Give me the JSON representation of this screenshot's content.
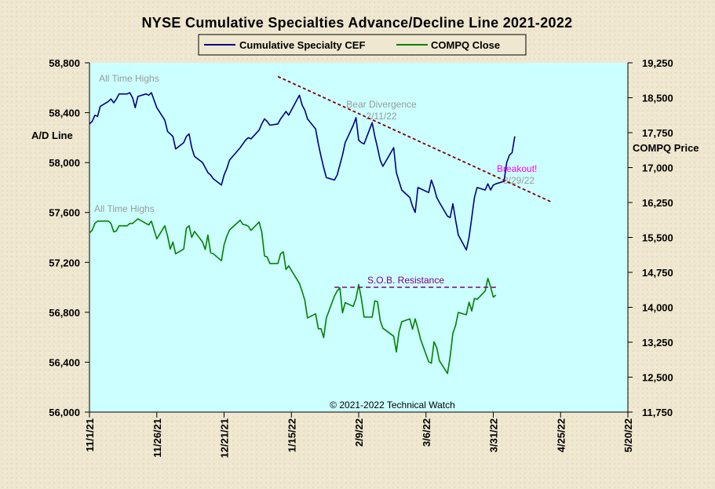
{
  "chart_data": {
    "type": "line",
    "title": "NYSE Cumulative  Specialties  Advance/Decline  Line  2021-2022",
    "left_axis": {
      "label": "A/D Line",
      "ylim": [
        56000,
        58800
      ],
      "ticks": [
        56000,
        56400,
        56800,
        57200,
        57600,
        58000,
        58400,
        58800
      ],
      "tick_labels": [
        "56,000",
        "56,400",
        "56,800",
        "57,200",
        "57,600",
        "58,000",
        "58,400",
        "58,800"
      ]
    },
    "right_axis": {
      "label": "COMPQ Price",
      "ylim": [
        11750,
        19250
      ],
      "ticks": [
        11750,
        12500,
        13250,
        14000,
        14750,
        15500,
        16250,
        17000,
        17750,
        18500,
        19250
      ],
      "tick_labels": [
        "11,750",
        "12,500",
        "13,250",
        "14,000",
        "14,750",
        "15,500",
        "16,250",
        "17,000",
        "17,750",
        "18,500",
        "19,250"
      ]
    },
    "x_axis": {
      "start": "2021-11-01",
      "end": "2022-05-20",
      "tick_dates": [
        "2021-11-01",
        "2021-11-26",
        "2021-12-21",
        "2022-01-15",
        "2022-02-09",
        "2022-03-06",
        "2022-03-31",
        "2022-04-25",
        "2022-05-20"
      ],
      "tick_labels": [
        "11/1/21",
        "11/26/21",
        "12/21/21",
        "1/15/22",
        "2/9/22",
        "3/6/22",
        "3/31/22",
        "4/25/22",
        "5/20/22"
      ]
    },
    "legend": {
      "placement": "top-center"
    },
    "colors": {
      "plot_bg": "#ccffff",
      "cef": "#000080",
      "compq": "#008000",
      "trend": "#800000",
      "resistance": "#800080",
      "breakout": "#ff00ff",
      "annotation": "#9a9a9a"
    },
    "series": [
      {
        "name": "Cumulative Specialty CEF",
        "axis": "left",
        "points": [
          [
            "2021-11-01",
            58310
          ],
          [
            "2021-11-02",
            58330
          ],
          [
            "2021-11-03",
            58380
          ],
          [
            "2021-11-04",
            58370
          ],
          [
            "2021-11-05",
            58450
          ],
          [
            "2021-11-08",
            58490
          ],
          [
            "2021-11-09",
            58510
          ],
          [
            "2021-11-10",
            58480
          ],
          [
            "2021-11-11",
            58510
          ],
          [
            "2021-11-12",
            58550
          ],
          [
            "2021-11-15",
            58550
          ],
          [
            "2021-11-16",
            58560
          ],
          [
            "2021-11-17",
            58520
          ],
          [
            "2021-11-18",
            58440
          ],
          [
            "2021-11-19",
            58530
          ],
          [
            "2021-11-22",
            58550
          ],
          [
            "2021-11-23",
            58540
          ],
          [
            "2021-11-24",
            58560
          ],
          [
            "2021-11-26",
            58440
          ],
          [
            "2021-11-29",
            58340
          ],
          [
            "2021-11-30",
            58250
          ],
          [
            "2021-12-01",
            58230
          ],
          [
            "2021-12-02",
            58210
          ],
          [
            "2021-12-03",
            58110
          ],
          [
            "2021-12-06",
            58160
          ],
          [
            "2021-12-07",
            58210
          ],
          [
            "2021-12-08",
            58230
          ],
          [
            "2021-12-09",
            58120
          ],
          [
            "2021-12-10",
            58050
          ],
          [
            "2021-12-13",
            58000
          ],
          [
            "2021-12-14",
            57960
          ],
          [
            "2021-12-15",
            57920
          ],
          [
            "2021-12-16",
            57900
          ],
          [
            "2021-12-17",
            57870
          ],
          [
            "2021-12-20",
            57820
          ],
          [
            "2021-12-21",
            57900
          ],
          [
            "2021-12-22",
            57950
          ],
          [
            "2021-12-23",
            58020
          ],
          [
            "2021-12-27",
            58120
          ],
          [
            "2021-12-28",
            58150
          ],
          [
            "2021-12-29",
            58180
          ],
          [
            "2021-12-30",
            58200
          ],
          [
            "2021-12-31",
            58190
          ],
          [
            "2022-01-03",
            58260
          ],
          [
            "2022-01-04",
            58310
          ],
          [
            "2022-01-05",
            58350
          ],
          [
            "2022-01-06",
            58330
          ],
          [
            "2022-01-07",
            58300
          ],
          [
            "2022-01-10",
            58310
          ],
          [
            "2022-01-11",
            58350
          ],
          [
            "2022-01-12",
            58380
          ],
          [
            "2022-01-13",
            58410
          ],
          [
            "2022-01-14",
            58380
          ],
          [
            "2022-01-18",
            58540
          ],
          [
            "2022-01-19",
            58460
          ],
          [
            "2022-01-20",
            58420
          ],
          [
            "2022-01-21",
            58350
          ],
          [
            "2022-01-24",
            58270
          ],
          [
            "2022-01-25",
            58150
          ],
          [
            "2022-01-26",
            58050
          ],
          [
            "2022-01-27",
            57960
          ],
          [
            "2022-01-28",
            57880
          ],
          [
            "2022-01-31",
            57860
          ],
          [
            "2022-02-01",
            57900
          ],
          [
            "2022-02-02",
            57980
          ],
          [
            "2022-02-03",
            58060
          ],
          [
            "2022-02-04",
            58160
          ],
          [
            "2022-02-07",
            58300
          ],
          [
            "2022-02-08",
            58360
          ],
          [
            "2022-02-09",
            58180
          ],
          [
            "2022-02-10",
            58160
          ],
          [
            "2022-02-11",
            58150
          ],
          [
            "2022-02-14",
            58320
          ],
          [
            "2022-02-15",
            58210
          ],
          [
            "2022-02-16",
            58120
          ],
          [
            "2022-02-17",
            58020
          ],
          [
            "2022-02-18",
            57970
          ],
          [
            "2022-02-22",
            58120
          ],
          [
            "2022-02-23",
            57920
          ],
          [
            "2022-02-24",
            57850
          ],
          [
            "2022-02-25",
            57780
          ],
          [
            "2022-02-28",
            57720
          ],
          [
            "2022-03-01",
            57650
          ],
          [
            "2022-03-02",
            57600
          ],
          [
            "2022-03-03",
            57800
          ],
          [
            "2022-03-04",
            57790
          ],
          [
            "2022-03-07",
            57760
          ],
          [
            "2022-03-08",
            57860
          ],
          [
            "2022-03-09",
            57800
          ],
          [
            "2022-03-10",
            57720
          ],
          [
            "2022-03-11",
            57680
          ],
          [
            "2022-03-14",
            57570
          ],
          [
            "2022-03-15",
            57560
          ],
          [
            "2022-03-16",
            57670
          ],
          [
            "2022-03-17",
            57540
          ],
          [
            "2022-03-18",
            57420
          ],
          [
            "2022-03-21",
            57300
          ],
          [
            "2022-03-22",
            57400
          ],
          [
            "2022-03-23",
            57560
          ],
          [
            "2022-03-24",
            57720
          ],
          [
            "2022-03-25",
            57800
          ],
          [
            "2022-03-28",
            57780
          ],
          [
            "2022-03-29",
            57830
          ],
          [
            "2022-03-30",
            57780
          ],
          [
            "2022-03-31",
            57820
          ],
          [
            "2022-04-01",
            57830
          ],
          [
            "2022-04-04",
            57850
          ],
          [
            "2022-04-05",
            58000
          ],
          [
            "2022-04-06",
            58060
          ],
          [
            "2022-04-07",
            58080
          ],
          [
            "2022-04-08",
            58210
          ]
        ]
      },
      {
        "name": "COMPQ Close",
        "axis": "right",
        "points": [
          [
            "2021-11-01",
            15600
          ],
          [
            "2021-11-02",
            15650
          ],
          [
            "2021-11-03",
            15800
          ],
          [
            "2021-11-04",
            15850
          ],
          [
            "2021-11-05",
            15850
          ],
          [
            "2021-11-08",
            15850
          ],
          [
            "2021-11-09",
            15800
          ],
          [
            "2021-11-10",
            15620
          ],
          [
            "2021-11-11",
            15640
          ],
          [
            "2021-11-12",
            15750
          ],
          [
            "2021-11-15",
            15750
          ],
          [
            "2021-11-16",
            15800
          ],
          [
            "2021-11-17",
            15800
          ],
          [
            "2021-11-18",
            15850
          ],
          [
            "2021-11-19",
            15900
          ],
          [
            "2021-11-22",
            15800
          ],
          [
            "2021-11-23",
            15770
          ],
          [
            "2021-11-24",
            15850
          ],
          [
            "2021-11-26",
            15470
          ],
          [
            "2021-11-29",
            15750
          ],
          [
            "2021-11-30",
            15530
          ],
          [
            "2021-12-01",
            15250
          ],
          [
            "2021-12-02",
            15400
          ],
          [
            "2021-12-03",
            15150
          ],
          [
            "2021-12-06",
            15250
          ],
          [
            "2021-12-07",
            15700
          ],
          [
            "2021-12-08",
            15750
          ],
          [
            "2021-12-09",
            15500
          ],
          [
            "2021-12-10",
            15630
          ],
          [
            "2021-12-13",
            15400
          ],
          [
            "2021-12-14",
            15240
          ],
          [
            "2021-12-15",
            15550
          ],
          [
            "2021-12-16",
            15170
          ],
          [
            "2021-12-17",
            15150
          ],
          [
            "2021-12-20",
            15000
          ],
          [
            "2021-12-21",
            15340
          ],
          [
            "2021-12-22",
            15520
          ],
          [
            "2021-12-23",
            15660
          ],
          [
            "2021-12-27",
            15870
          ],
          [
            "2021-12-28",
            15780
          ],
          [
            "2021-12-29",
            15770
          ],
          [
            "2021-12-30",
            15740
          ],
          [
            "2021-12-31",
            15650
          ],
          [
            "2022-01-03",
            15830
          ],
          [
            "2022-01-04",
            15620
          ],
          [
            "2022-01-05",
            15100
          ],
          [
            "2022-01-06",
            15080
          ],
          [
            "2022-01-07",
            14940
          ],
          [
            "2022-01-10",
            14940
          ],
          [
            "2022-01-11",
            15150
          ],
          [
            "2022-01-12",
            15190
          ],
          [
            "2022-01-13",
            14810
          ],
          [
            "2022-01-14",
            14890
          ],
          [
            "2022-01-18",
            14510
          ],
          [
            "2022-01-19",
            14340
          ],
          [
            "2022-01-20",
            14150
          ],
          [
            "2022-01-21",
            13770
          ],
          [
            "2022-01-24",
            13860
          ],
          [
            "2022-01-25",
            13540
          ],
          [
            "2022-01-26",
            13540
          ],
          [
            "2022-01-27",
            13350
          ],
          [
            "2022-01-28",
            13770
          ],
          [
            "2022-01-31",
            14240
          ],
          [
            "2022-02-01",
            14350
          ],
          [
            "2022-02-02",
            14420
          ],
          [
            "2022-02-03",
            13880
          ],
          [
            "2022-02-04",
            14100
          ],
          [
            "2022-02-07",
            14020
          ],
          [
            "2022-02-08",
            14190
          ],
          [
            "2022-02-09",
            14490
          ],
          [
            "2022-02-10",
            14190
          ],
          [
            "2022-02-11",
            13790
          ],
          [
            "2022-02-14",
            13790
          ],
          [
            "2022-02-15",
            14140
          ],
          [
            "2022-02-16",
            14120
          ],
          [
            "2022-02-17",
            13720
          ],
          [
            "2022-02-18",
            13550
          ],
          [
            "2022-02-22",
            13380
          ],
          [
            "2022-02-23",
            13040
          ],
          [
            "2022-02-24",
            13470
          ],
          [
            "2022-02-25",
            13690
          ],
          [
            "2022-02-28",
            13750
          ],
          [
            "2022-03-01",
            13530
          ],
          [
            "2022-03-02",
            13750
          ],
          [
            "2022-03-03",
            13540
          ],
          [
            "2022-03-04",
            13310
          ],
          [
            "2022-03-07",
            12830
          ],
          [
            "2022-03-08",
            12800
          ],
          [
            "2022-03-09",
            13260
          ],
          [
            "2022-03-10",
            13130
          ],
          [
            "2022-03-11",
            12850
          ],
          [
            "2022-03-14",
            12580
          ],
          [
            "2022-03-15",
            12950
          ],
          [
            "2022-03-16",
            13440
          ],
          [
            "2022-03-17",
            13610
          ],
          [
            "2022-03-18",
            13890
          ],
          [
            "2022-03-21",
            13840
          ],
          [
            "2022-03-22",
            14110
          ],
          [
            "2022-03-23",
            13920
          ],
          [
            "2022-03-24",
            14190
          ],
          [
            "2022-03-25",
            14170
          ],
          [
            "2022-03-28",
            14350
          ],
          [
            "2022-03-29",
            14620
          ],
          [
            "2022-03-30",
            14440
          ],
          [
            "2022-03-31",
            14220
          ],
          [
            "2022-04-01",
            14260
          ]
        ]
      }
    ],
    "annotations": {
      "all_time_highs_cef": "All Time Highs",
      "all_time_highs_compq": "All Time Highs",
      "bear_divergence": "Bear Divergence",
      "bear_divergence_date": "2/11/22",
      "breakout": "Breakout!",
      "breakout_date": "3/29/22",
      "resistance": "S.O.B. Resistance",
      "copyright": "© 2021-2022  Technical Watch"
    },
    "trendline": {
      "axis": "left",
      "from": [
        "2022-01-10",
        58690
      ],
      "to": [
        "2022-04-22",
        57680
      ]
    },
    "resistance_line": {
      "axis": "right",
      "from": [
        "2022-01-31",
        14430
      ],
      "to": [
        "2022-04-01",
        14430
      ]
    }
  }
}
